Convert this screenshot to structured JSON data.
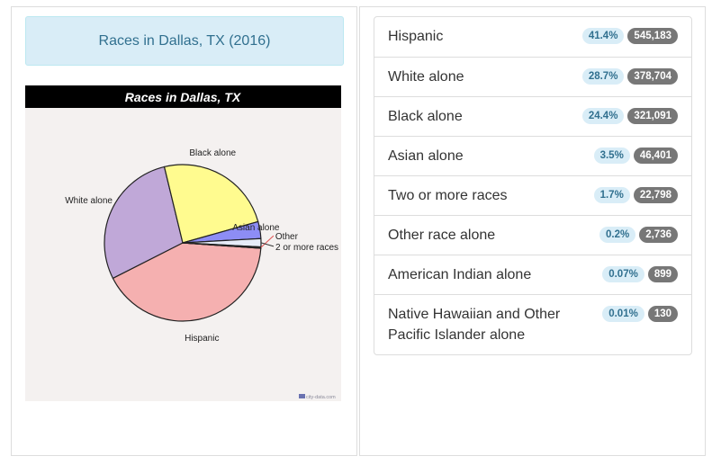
{
  "panel_title": "Races in Dallas, TX (2016)",
  "chart_data": {
    "type": "pie",
    "title": "Races in Dallas, TX",
    "watermark": "city-data.com",
    "slices": [
      {
        "label": "Hispanic",
        "value": 41.4,
        "color": "#f5b0b0"
      },
      {
        "label": "White alone",
        "value": 28.7,
        "color": "#c0a8d8"
      },
      {
        "label": "Black alone",
        "value": 24.4,
        "color": "#fffb8f"
      },
      {
        "label": "Asian alone",
        "value": 3.5,
        "color": "#8d8df5"
      },
      {
        "label": "2 or more races",
        "value": 1.7,
        "color": "#e6ecf8"
      },
      {
        "label": "Other",
        "value": 0.2,
        "color": "#555555"
      },
      {
        "label": "American Indian alone",
        "value": 0.07,
        "color": "#999999"
      },
      {
        "label": "Native Hawaiian and Other Pacific Islander alone",
        "value": 0.01,
        "color": "#999999"
      }
    ],
    "colors": {
      "title_bar": "#000000",
      "title_text": "#ffffff",
      "plot_bg": "#f4f1f0",
      "callout_line": "#e05050"
    }
  },
  "race_list": [
    {
      "label": "Hispanic",
      "percent": "41.4%",
      "count": "545,183"
    },
    {
      "label": "White alone",
      "percent": "28.7%",
      "count": "378,704"
    },
    {
      "label": "Black alone",
      "percent": "24.4%",
      "count": "321,091"
    },
    {
      "label": "Asian alone",
      "percent": "3.5%",
      "count": "46,401"
    },
    {
      "label": "Two or more races",
      "percent": "1.7%",
      "count": "22,798"
    },
    {
      "label": "Other race alone",
      "percent": "0.2%",
      "count": "2,736"
    },
    {
      "label": "American Indian alone",
      "percent": "0.07%",
      "count": "899"
    },
    {
      "label": "Native Hawaiian and Other Pacific Islander alone",
      "percent": "0.01%",
      "count": "130"
    }
  ]
}
